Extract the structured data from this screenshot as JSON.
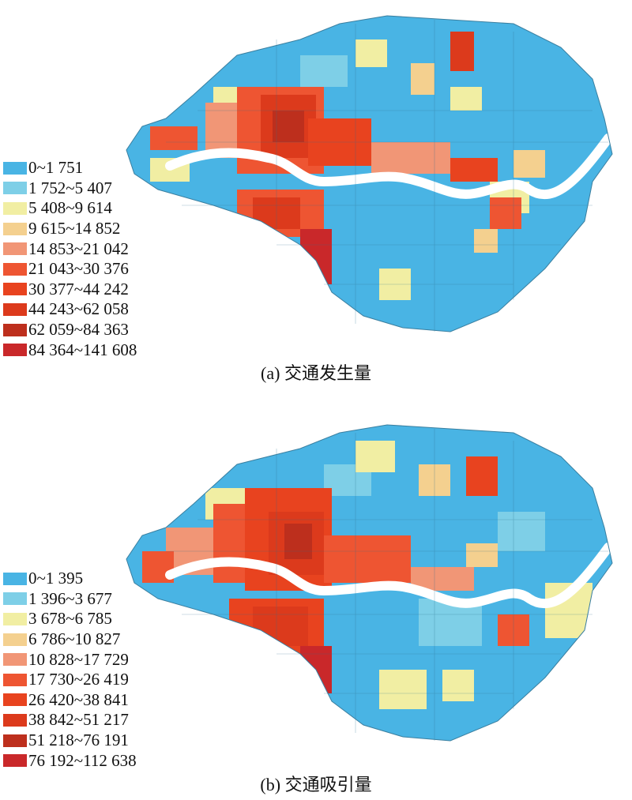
{
  "panels": [
    {
      "caption": "(a) 交通发生量",
      "legend": [
        {
          "label": "0~1 751",
          "color": "#49b4e4"
        },
        {
          "label": "1 752~5 407",
          "color": "#7ecfe7"
        },
        {
          "label": "5 408~9 614",
          "color": "#f1eea3"
        },
        {
          "label": "9 615~14 852",
          "color": "#f4d08f"
        },
        {
          "label": "14 853~21 042",
          "color": "#f19676"
        },
        {
          "label": "21 043~30 376",
          "color": "#ee5532"
        },
        {
          "label": "30 377~44 242",
          "color": "#e8431f"
        },
        {
          "label": "44 243~62 058",
          "color": "#dc3a1c"
        },
        {
          "label": "62 059~84 363",
          "color": "#bd2f1d"
        },
        {
          "label": "84 364~141 608",
          "color": "#c9282a"
        }
      ]
    },
    {
      "caption": "(b) 交通吸引量",
      "legend": [
        {
          "label": "0~1 395",
          "color": "#49b4e4"
        },
        {
          "label": "1 396~3 677",
          "color": "#7ecfe7"
        },
        {
          "label": "3 678~6 785",
          "color": "#f1eea3"
        },
        {
          "label": "6 786~10 827",
          "color": "#f4d08f"
        },
        {
          "label": "10 828~17 729",
          "color": "#f19676"
        },
        {
          "label": "17 730~26 419",
          "color": "#ee5532"
        },
        {
          "label": "26 420~38 841",
          "color": "#e8431f"
        },
        {
          "label": "38 842~51 217",
          "color": "#dc3a1c"
        },
        {
          "label": "51 218~76 191",
          "color": "#bd2f1d"
        },
        {
          "label": "76 192~112 638",
          "color": "#c9282a"
        }
      ]
    }
  ]
}
